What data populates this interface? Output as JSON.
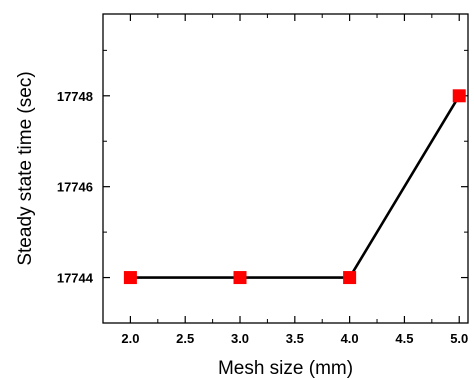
{
  "chart_data": {
    "type": "line",
    "title": "",
    "xlabel": "Mesh size (mm)",
    "ylabel": "Steady state time (sec)",
    "x": [
      2.0,
      3.0,
      4.0,
      5.0
    ],
    "series": [
      {
        "values": [
          17744,
          17744,
          17744,
          17748
        ],
        "line_color": "#000000",
        "marker": "square",
        "marker_color": "#ff0000"
      }
    ],
    "xlim": [
      1.75,
      5.08
    ],
    "ylim": [
      17743.0,
      17749.8
    ],
    "xticks": [
      "2.0",
      "2.5",
      "3.0",
      "3.5",
      "4.0",
      "4.5",
      "5.0"
    ],
    "yticks": [
      "17744",
      "17746",
      "17748"
    ],
    "grid": false,
    "legend": "none"
  }
}
